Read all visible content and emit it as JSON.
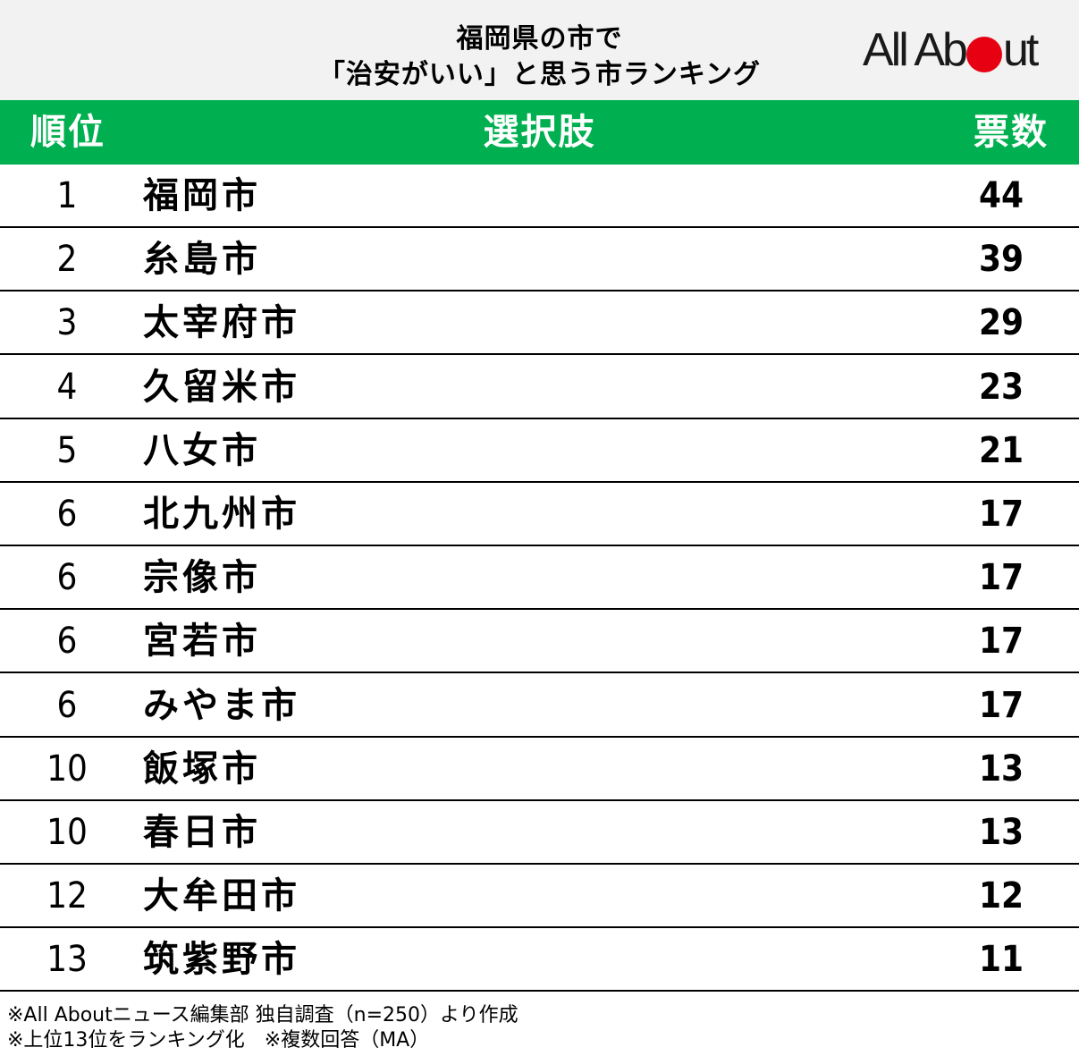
{
  "title": {
    "line1": "福岡県の市で",
    "line2": "「治安がいい」と思う市ランキング"
  },
  "logo": {
    "text_before": "All Ab",
    "text_after": "ut",
    "dot_color": "#e60012"
  },
  "colors": {
    "header_bg": "#00b050",
    "title_bg": "#f2f2f2",
    "header_text": "#ffffff"
  },
  "table": {
    "headers": {
      "rank": "順位",
      "choice": "選択肢",
      "votes": "票数"
    },
    "rows": [
      {
        "rank": "1",
        "name": "福岡市",
        "votes": "44"
      },
      {
        "rank": "2",
        "name": "糸島市",
        "votes": "39"
      },
      {
        "rank": "3",
        "name": "太宰府市",
        "votes": "29"
      },
      {
        "rank": "4",
        "name": "久留米市",
        "votes": "23"
      },
      {
        "rank": "5",
        "name": "八女市",
        "votes": "21"
      },
      {
        "rank": "6",
        "name": "北九州市",
        "votes": "17"
      },
      {
        "rank": "6",
        "name": "宗像市",
        "votes": "17"
      },
      {
        "rank": "6",
        "name": "宮若市",
        "votes": "17"
      },
      {
        "rank": "6",
        "name": "みやま市",
        "votes": "17"
      },
      {
        "rank": "10",
        "name": "飯塚市",
        "votes": "13"
      },
      {
        "rank": "10",
        "name": "春日市",
        "votes": "13"
      },
      {
        "rank": "12",
        "name": "大牟田市",
        "votes": "12"
      },
      {
        "rank": "13",
        "name": "筑紫野市",
        "votes": "11"
      }
    ]
  },
  "footnotes": {
    "line1": "※All Aboutニュース編集部 独自調査（n=250）より作成",
    "line2": "※上位13位をランキング化　※複数回答（MA）"
  },
  "chart_data": {
    "type": "table",
    "title": "福岡県の市で「治安がいい」と思う市ランキング",
    "columns": [
      "順位",
      "選択肢",
      "票数"
    ],
    "categories": [
      "福岡市",
      "糸島市",
      "太宰府市",
      "久留米市",
      "八女市",
      "北九州市",
      "宗像市",
      "宮若市",
      "みやま市",
      "飯塚市",
      "春日市",
      "大牟田市",
      "筑紫野市"
    ],
    "ranks": [
      1,
      2,
      3,
      4,
      5,
      6,
      6,
      6,
      6,
      10,
      10,
      12,
      13
    ],
    "values": [
      44,
      39,
      29,
      23,
      21,
      17,
      17,
      17,
      17,
      13,
      13,
      12,
      11
    ]
  }
}
